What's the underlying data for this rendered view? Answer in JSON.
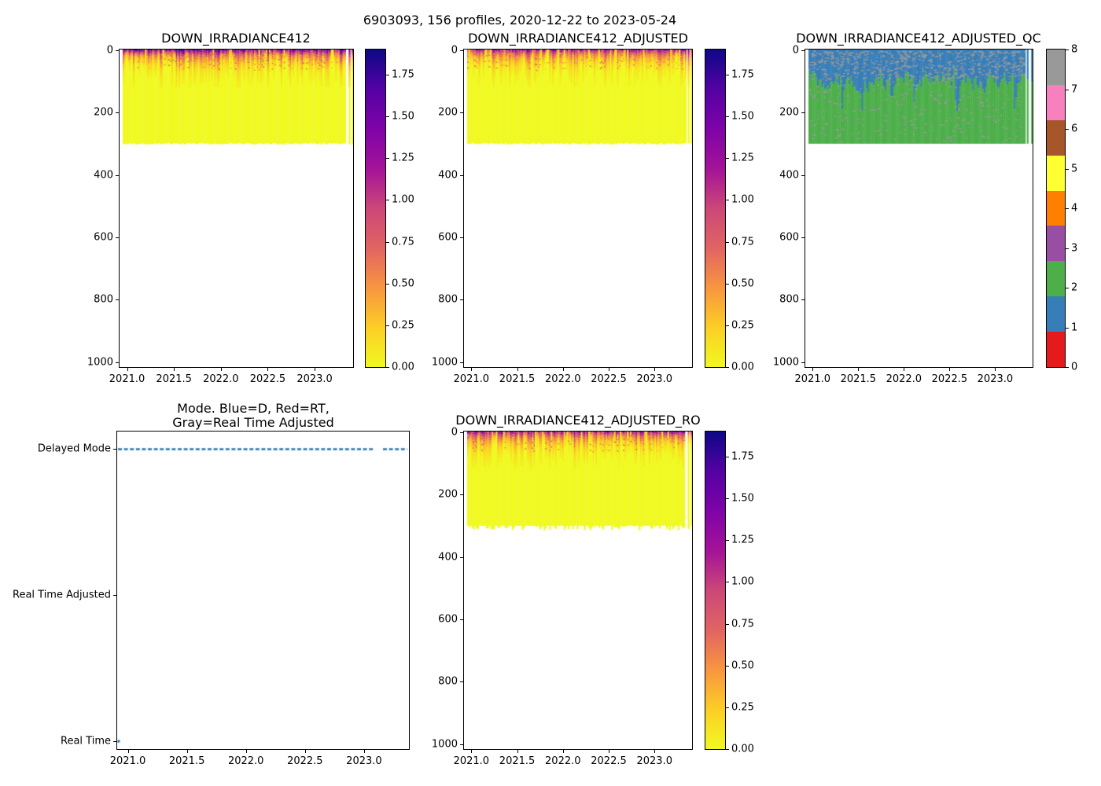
{
  "figure": {
    "suptitle": "6903093, 156 profiles, 2020-12-22 to 2023-05-24",
    "platform_id": "6903093",
    "n_profiles": 156,
    "date_range": [
      "2020-12-22",
      "2023-05-24"
    ],
    "background": "#ffffff"
  },
  "palette": {
    "plasma_r_stops": [
      "#f0f921",
      "#fcce25",
      "#f89540",
      "#e16462",
      "#cc4778",
      "#a41398",
      "#7e03a8",
      "#5402a3",
      "#0d0887"
    ],
    "set1_qc_colors": [
      "#e41a1c",
      "#377eb8",
      "#4daf4a",
      "#984ea3",
      "#ff7f00",
      "#ffff33",
      "#a65628",
      "#f781bf",
      "#999999"
    ],
    "mode_line_blue": "#2878b5",
    "body_yellow": "#f0f921",
    "qc_flag_gray": "#999999",
    "qc_blue": "#377eb8",
    "qc_green": "#4daf4a"
  },
  "chart_data": [
    {
      "id": "irradiance412",
      "type": "heatmap",
      "title": "DOWN_IRRADIANCE412",
      "x_tick_labels": [
        "2021.0",
        "2021.5",
        "2022.0",
        "2022.5",
        "2023.0"
      ],
      "x_tick_values": [
        2021.0,
        2021.5,
        2022.0,
        2022.5,
        2023.0
      ],
      "xlim": [
        2020.92,
        2023.41
      ],
      "y_tick_labels": [
        "0",
        "200",
        "400",
        "600",
        "800",
        "1000"
      ],
      "y_tick_values": [
        0,
        200,
        400,
        600,
        800,
        1000
      ],
      "ylim": [
        1016,
        -2
      ],
      "n_profiles": 156,
      "data_extent": {
        "time": [
          2020.97,
          2023.41
        ],
        "depth_m": [
          0,
          300
        ]
      },
      "value_range": [
        0.0,
        1.9
      ],
      "pattern": "high irradiance 0.5-1.9 (dark purple/magenta) in top 0-40 m decaying to ~0 (yellow) by ~60 m; uniform near-zero yellow down to 300 m; no data (white) below 300 m; ~3 missing profiles near 2023.2",
      "colorbar": {
        "cmap": "plasma_r",
        "vmin": 0.0,
        "vmax": 1.9,
        "tick_labels": [
          "0.00",
          "0.25",
          "0.50",
          "0.75",
          "1.00",
          "1.25",
          "1.50",
          "1.75"
        ],
        "tick_values": [
          0.0,
          0.25,
          0.5,
          0.75,
          1.0,
          1.25,
          1.5,
          1.75
        ]
      }
    },
    {
      "id": "irradiance412_adjusted",
      "type": "heatmap",
      "title": "DOWN_IRRADIANCE412_ADJUSTED",
      "x_tick_labels": [
        "2021.0",
        "2021.5",
        "2022.0",
        "2022.5",
        "2023.0"
      ],
      "x_tick_values": [
        2021.0,
        2021.5,
        2022.0,
        2022.5,
        2023.0
      ],
      "xlim": [
        2020.92,
        2023.41
      ],
      "y_tick_labels": [
        "0",
        "200",
        "400",
        "600",
        "800",
        "1000"
      ],
      "y_tick_values": [
        0,
        200,
        400,
        600,
        800,
        1000
      ],
      "ylim": [
        1016,
        -2
      ],
      "n_profiles": 156,
      "data_extent": {
        "time": [
          2020.97,
          2023.41
        ],
        "depth_m": [
          0,
          300
        ]
      },
      "value_range": [
        0.0,
        1.9
      ],
      "pattern": "same as DOWN_IRRADIANCE412, slightly lighter surface layer; yellow body to 300 m; white below; 2 missing profiles near 2023.2",
      "colorbar": {
        "cmap": "plasma_r",
        "vmin": 0.0,
        "vmax": 1.9,
        "tick_labels": [
          "0.00",
          "0.25",
          "0.50",
          "0.75",
          "1.00",
          "1.25",
          "1.50",
          "1.75"
        ],
        "tick_values": [
          0.0,
          0.25,
          0.5,
          0.75,
          1.0,
          1.25,
          1.5,
          1.75
        ]
      }
    },
    {
      "id": "irradiance412_adjusted_qc",
      "type": "heatmap",
      "title": "DOWN_IRRADIANCE412_ADJUSTED_QC",
      "x_tick_labels": [
        "2021.0",
        "2021.5",
        "2022.0",
        "2022.5",
        "2023.0"
      ],
      "x_tick_values": [
        2021.0,
        2021.5,
        2022.0,
        2022.5,
        2023.0
      ],
      "xlim": [
        2020.92,
        2023.41
      ],
      "y_tick_labels": [
        "0",
        "200",
        "400",
        "600",
        "800",
        "1000"
      ],
      "y_tick_values": [
        0,
        200,
        400,
        600,
        800,
        1000
      ],
      "ylim": [
        1016,
        -2
      ],
      "n_profiles": 156,
      "data_extent": {
        "time": [
          2020.97,
          2023.41
        ],
        "depth_m": [
          0,
          300
        ]
      },
      "categories": [
        0,
        1,
        2,
        3,
        4,
        5,
        6,
        7,
        8
      ],
      "pattern": "QC flag 1 (blue) from surface to ~60-180 m with scattered QC 8 (gray) flags; QC flag 2 (green) below down to 300 m with sparse gray flags; white (no data) below 300 m; missing profiles near 2023.2",
      "colorbar": {
        "cmap": "Set1 discrete, 9 classes",
        "vmin": 0,
        "vmax": 8,
        "tick_labels": [
          "0",
          "1",
          "2",
          "3",
          "4",
          "5",
          "6",
          "7",
          "8"
        ],
        "tick_values": [
          0,
          1,
          2,
          3,
          4,
          5,
          6,
          7,
          8
        ]
      }
    },
    {
      "id": "mode",
      "type": "scatter",
      "title_lines": [
        "Mode. Blue=D, Red=RT,",
        "Gray=Real Time Adjusted"
      ],
      "x_tick_labels": [
        "2021.0",
        "2021.5",
        "2022.0",
        "2022.5",
        "2023.0"
      ],
      "x_tick_values": [
        2021.0,
        2021.5,
        2022.0,
        2022.5,
        2023.0
      ],
      "xlim": [
        2020.91,
        2023.38
      ],
      "y_category_labels": [
        "Delayed Mode",
        "Real Time Adjusted",
        "Real Time"
      ],
      "series": [
        {
          "name": "delayed-mode-profiles",
          "y": "Delayed Mode",
          "color": "#2878b5",
          "x_extent": [
            2020.97,
            2023.37
          ],
          "gap_x": [
            2023.08,
            2023.16
          ],
          "style": "dense dashed row of markers"
        },
        {
          "name": "real-time-profile",
          "y": "Real Time",
          "color": "#2878b5",
          "x_points": [
            2020.97
          ],
          "style": "single small marker"
        }
      ]
    },
    {
      "id": "irradiance412_adjusted_ro",
      "type": "heatmap",
      "title": "DOWN_IRRADIANCE412_ADJUSTED_RO",
      "x_tick_labels": [
        "2021.0",
        "2021.5",
        "2022.0",
        "2022.5",
        "2023.0"
      ],
      "x_tick_values": [
        2021.0,
        2021.5,
        2022.0,
        2022.5,
        2023.0
      ],
      "xlim": [
        2020.92,
        2023.41
      ],
      "y_tick_labels": [
        "0",
        "200",
        "400",
        "600",
        "800",
        "1000"
      ],
      "y_tick_values": [
        0,
        200,
        400,
        600,
        800,
        1000
      ],
      "ylim": [
        1016,
        -2
      ],
      "n_profiles": 156,
      "data_extent": {
        "time": [
          2020.97,
          2023.41
        ],
        "depth_m": [
          0,
          305
        ]
      },
      "value_range": [
        0.0,
        1.9
      ],
      "pattern": "like ADJUSTED; yellow body with slightly ragged bottom edge around 300 m; white below; 2 missing profiles near 2023.2",
      "colorbar": {
        "cmap": "plasma_r",
        "vmin": 0.0,
        "vmax": 1.9,
        "tick_labels": [
          "0.00",
          "0.25",
          "0.50",
          "0.75",
          "1.00",
          "1.25",
          "1.50",
          "1.75"
        ],
        "tick_values": [
          0.0,
          0.25,
          0.5,
          0.75,
          1.0,
          1.25,
          1.5,
          1.75
        ]
      }
    }
  ]
}
